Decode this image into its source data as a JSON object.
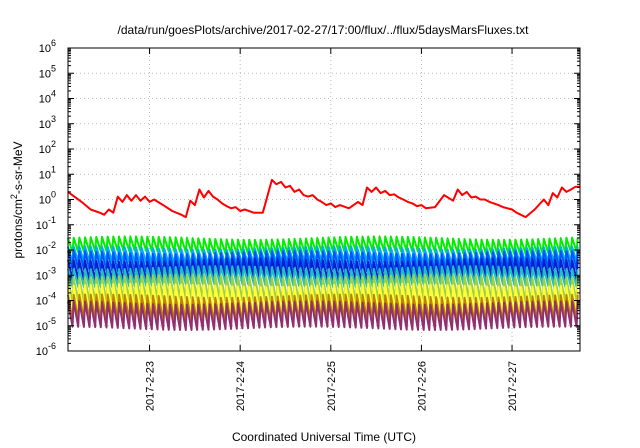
{
  "chart_data": {
    "type": "line",
    "title": "/data/run/goesPlots/archive/2017-02-27/17:00/flux/../flux/5daysMarsFluxes.txt",
    "xlabel": "Coordinated Universal Time (UTC)",
    "ylabel_parts": {
      "base": "protons/cm",
      "exp": "2",
      "rest": "-s-sr-MeV"
    },
    "y_scale": "log",
    "ylim_exponents": [
      -6,
      6
    ],
    "y_tick_labels": [
      {
        "base": "10",
        "exp": "-6"
      },
      {
        "base": "10",
        "exp": "-5"
      },
      {
        "base": "10",
        "exp": "-4"
      },
      {
        "base": "10",
        "exp": "-3"
      },
      {
        "base": "10",
        "exp": "-2"
      },
      {
        "base": "10",
        "exp": "-1"
      },
      {
        "base": "10",
        "exp": "0"
      },
      {
        "base": "10",
        "exp": "1"
      },
      {
        "base": "10",
        "exp": "2"
      },
      {
        "base": "10",
        "exp": "3"
      },
      {
        "base": "10",
        "exp": "4"
      },
      {
        "base": "10",
        "exp": "5"
      },
      {
        "base": "10",
        "exp": "6"
      }
    ],
    "x_range_days": [
      22.1,
      27.75
    ],
    "x_ticks": [
      {
        "day": 23,
        "label": "2017-2-23"
      },
      {
        "day": 24,
        "label": "2017-2-24"
      },
      {
        "day": 25,
        "label": "2017-2-25"
      },
      {
        "day": 26,
        "label": "2017-2-26"
      },
      {
        "day": 27,
        "label": "2017-2-27"
      }
    ],
    "grid": true,
    "series": [
      {
        "color": "#ff0000",
        "values_x_days": [
          22.1,
          22.25,
          22.35,
          22.45,
          22.5,
          22.55,
          22.6,
          22.65,
          22.7,
          22.75,
          22.8,
          22.85,
          22.9,
          22.95,
          23.0,
          23.05,
          23.15,
          23.25,
          23.35,
          23.4,
          23.45,
          23.5,
          23.55,
          23.6,
          23.65,
          23.7,
          23.75,
          23.8,
          23.85,
          23.9,
          23.95,
          24.0,
          24.05,
          24.15,
          24.25,
          24.35,
          24.4,
          24.45,
          24.5,
          24.55,
          24.6,
          24.65,
          24.7,
          24.75,
          24.8,
          24.85,
          24.9,
          24.95,
          25.0,
          25.05,
          25.1,
          25.2,
          25.3,
          25.35,
          25.4,
          25.45,
          25.5,
          25.55,
          25.6,
          25.65,
          25.7,
          25.75,
          25.8,
          25.85,
          25.9,
          25.95,
          26.0,
          26.05,
          26.15,
          26.25,
          26.35,
          26.4,
          26.45,
          26.5,
          26.55,
          26.6,
          26.65,
          26.7,
          26.75,
          26.8,
          26.85,
          26.9,
          26.95,
          27.0,
          27.05,
          27.15,
          27.25,
          27.35,
          27.4,
          27.45,
          27.5,
          27.55,
          27.6,
          27.65,
          27.7,
          27.75
        ],
        "values_y": [
          2.0,
          0.8,
          0.4,
          0.3,
          0.25,
          0.4,
          0.3,
          1.3,
          0.8,
          1.5,
          0.9,
          1.5,
          0.9,
          1.3,
          0.8,
          1.0,
          0.6,
          0.35,
          0.25,
          0.2,
          0.9,
          0.6,
          2.5,
          1.2,
          2.2,
          1.3,
          1.0,
          0.7,
          0.55,
          0.45,
          0.5,
          0.35,
          0.4,
          0.3,
          0.3,
          6.0,
          4.0,
          5.0,
          3.0,
          3.5,
          2.0,
          2.5,
          1.5,
          1.3,
          1.5,
          1.0,
          0.8,
          0.6,
          0.7,
          0.5,
          0.6,
          0.45,
          0.8,
          0.6,
          3.0,
          2.0,
          3.0,
          1.8,
          2.2,
          1.5,
          1.6,
          1.2,
          1.0,
          0.8,
          0.7,
          0.55,
          0.6,
          0.45,
          0.5,
          1.5,
          0.9,
          2.5,
          1.5,
          2.0,
          1.2,
          1.3,
          1.0,
          1.0,
          0.8,
          0.7,
          0.6,
          0.5,
          0.45,
          0.4,
          0.3,
          0.2,
          0.4,
          1.0,
          0.6,
          1.8,
          1.2,
          3.0,
          2.0,
          2.5,
          3.2,
          3.2
        ]
      }
    ],
    "banded_series": [
      {
        "color": "#00ee00",
        "high": 0.03,
        "low": 0.008
      },
      {
        "color": "#00aaff",
        "high": 0.012,
        "low": 0.003
      },
      {
        "color": "#0055ff",
        "high": 0.008,
        "low": 0.0015
      },
      {
        "color": "#0022cc",
        "high": 0.004,
        "low": 0.0007
      },
      {
        "color": "#20c0c0",
        "high": 0.002,
        "low": 0.0004
      },
      {
        "color": "#a0d040",
        "high": 0.0009,
        "low": 0.0001
      },
      {
        "color": "#ffff33",
        "high": 0.0004,
        "low": 3e-05
      },
      {
        "color": "#c08000",
        "high": 0.00015,
        "low": 1.5e-05
      },
      {
        "color": "#903070",
        "high": 8e-05,
        "low": 8e-06
      }
    ],
    "oscillation_period_days": 0.0625
  }
}
